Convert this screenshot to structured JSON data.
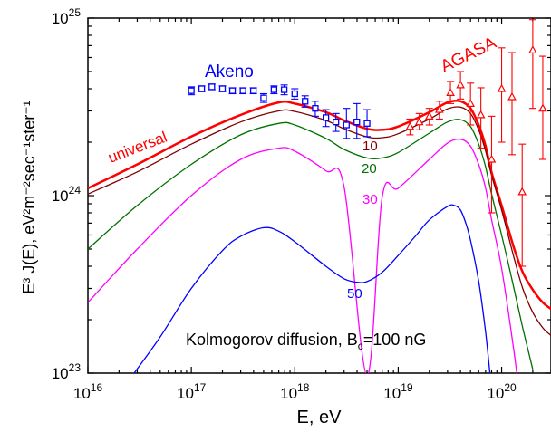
{
  "chart_data": {
    "type": "line",
    "title": "",
    "xlabel": "E, eV",
    "ylabel": "E³ J(E),  eV²m⁻²sec⁻¹ster⁻¹",
    "x_scale": "log",
    "y_scale": "log",
    "xlim": [
      1e+16,
      3e+20
    ],
    "ylim": [
      1e+23,
      1e+25
    ],
    "grid": false,
    "x_ticks": [
      {
        "value": 1e+16,
        "base": "10",
        "exp": "16"
      },
      {
        "value": 1e+17,
        "base": "10",
        "exp": "17"
      },
      {
        "value": 1e+18,
        "base": "10",
        "exp": "18"
      },
      {
        "value": 1e+19,
        "base": "10",
        "exp": "19"
      },
      {
        "value": 1e+20,
        "base": "10",
        "exp": "20"
      }
    ],
    "y_ticks": [
      {
        "value": 1e+23,
        "base": "10",
        "exp": "23"
      },
      {
        "value": 1e+24,
        "base": "10",
        "exp": "24"
      },
      {
        "value": 1e+25,
        "base": "10",
        "exp": "25"
      }
    ],
    "annotation": {
      "prefix": "Kolmogorov diffusion, B",
      "sub": "c",
      "suffix": "=100 nG"
    },
    "series": [
      {
        "name": "universal",
        "color": "#ff0000",
        "width": 2.5,
        "x": [
          1e+16,
          3e+16,
          1e+17,
          3e+17,
          7e+17,
          1e+18,
          2e+18,
          3e+18,
          5e+18,
          7e+18,
          1e+19,
          2e+19,
          3e+19,
          4e+19,
          5e+19,
          6e+19,
          7e+19,
          8e+19,
          1e+20,
          1.3e+20,
          1.6e+20,
          2e+20,
          2.5e+20,
          3e+20
        ],
        "y": [
          1.1e+24,
          1.5e+24,
          2.15e+24,
          2.85e+24,
          3.35e+24,
          3.3e+24,
          2.95e+24,
          2.65e+24,
          2.38e+24,
          2.35e+24,
          2.45e+24,
          2.95e+24,
          3.35e+24,
          3.4e+24,
          3.1e+24,
          2.5e+24,
          1.9e+24,
          1.35e+24,
          8.8e+23,
          5.2e+23,
          3.7e+23,
          2.95e+23,
          2.5e+23,
          2.3e+23
        ]
      },
      {
        "name": "10",
        "color": "#800000",
        "width": 1.3,
        "x": [
          1e+16,
          3e+16,
          1e+17,
          3e+17,
          7e+17,
          1e+18,
          2e+18,
          3e+18,
          5e+18,
          7e+18,
          1e+19,
          2e+19,
          3e+19,
          4e+19,
          5e+19,
          6e+19,
          7e+19,
          8e+19,
          1e+20,
          1.3e+20,
          1.6e+20,
          2e+20,
          2.5e+20,
          3e+20
        ],
        "y": [
          1.02e+24,
          1.36e+24,
          1.95e+24,
          2.6e+24,
          3e+24,
          2.98e+24,
          2.65e+24,
          2.38e+24,
          2.14e+24,
          2.12e+24,
          2.23e+24,
          2.7e+24,
          3.08e+24,
          3.15e+24,
          2.9e+24,
          2.35e+24,
          1.78e+24,
          1.3e+24,
          8.3e+23,
          4.6e+23,
          3e+23,
          2.2e+23,
          1.8e+23,
          1.63e+23
        ]
      },
      {
        "name": "20",
        "color": "#007000",
        "width": 1.3,
        "x": [
          1e+16,
          3e+16,
          1e+17,
          3e+17,
          7e+17,
          1e+18,
          2e+18,
          3e+18,
          5e+18,
          7e+18,
          1e+19,
          2e+19,
          3e+19,
          4e+19,
          5e+19,
          6e+19,
          7e+19,
          8e+19,
          1e+20,
          1.3e+20,
          1.6e+20,
          2e+20
        ],
        "y": [
          5e+23,
          8.8e+23,
          1.5e+24,
          2.2e+24,
          2.55e+24,
          2.5e+24,
          2.1e+24,
          1.82e+24,
          1.63e+24,
          1.63e+24,
          1.75e+24,
          2.25e+24,
          2.6e+24,
          2.68e+24,
          2.45e+24,
          1.95e+24,
          1.45e+24,
          1.02e+24,
          6e+23,
          3.1e+23,
          1.8e+23,
          1.05e+23
        ]
      },
      {
        "name": "30",
        "color": "#ff00ff",
        "width": 1.3,
        "x": [
          1e+16,
          3e+16,
          1e+17,
          3e+17,
          7e+17,
          1e+18,
          2e+18,
          3e+18,
          5e+18,
          7e+18,
          1e+19,
          2e+19,
          3e+19,
          4e+19,
          5e+19,
          6e+19,
          7e+19,
          8e+19,
          1e+20,
          1.3e+20,
          1.4e+20
        ],
        "y": [
          2.5e+23,
          5e+23,
          1e+24,
          1.6e+24,
          1.85e+24,
          1.78e+24,
          1.38e+24,
          1.12e+24,
          9.7e+22,
          9.8e+23,
          1.1e+24,
          1.6e+24,
          1.98e+24,
          2.08e+24,
          1.9e+24,
          1.5e+24,
          1.1e+24,
          7.3e+23,
          3.9e+23,
          1.4e+23,
          1e+23
        ]
      },
      {
        "name": "50",
        "color": "#0000ff",
        "width": 1.3,
        "x": [
          2.8e+16,
          5e+16,
          1e+17,
          2e+17,
          3e+17,
          5e+17,
          7e+17,
          1e+18,
          2e+18,
          3e+18,
          4e+18,
          5e+18,
          7e+18,
          1e+19,
          1.5e+19,
          2e+19,
          3e+19,
          3.5e+19,
          4e+19,
          4.5e+19,
          5e+19,
          6e+19,
          7e+19,
          7.7e+19
        ],
        "y": [
          1e+23,
          1.6e+23,
          3e+23,
          4.9e+23,
          5.9e+23,
          6.6e+23,
          6.3e+23,
          5.5e+23,
          4e+23,
          3.4e+23,
          3.25e+23,
          3.28e+23,
          3.7e+23,
          4.6e+23,
          6e+23,
          7.3e+23,
          8.7e+23,
          8.8e+23,
          8.3e+23,
          7e+23,
          5.6e+23,
          3.3e+23,
          1.7e+23,
          1e+23
        ]
      }
    ],
    "data_sets": [
      {
        "name": "Akeno",
        "color": "#0000ff",
        "marker": "square",
        "points": [
          [
            1e+17,
            3.9e+24,
            2e+23,
            2e+23
          ],
          [
            1.26e+17,
            4e+24,
            1.5e+23,
            1.5e+23
          ],
          [
            1.58e+17,
            4.1e+24,
            1.5e+23,
            1.5e+23
          ],
          [
            2e+17,
            4e+24,
            1.5e+23,
            1.5e+23
          ],
          [
            2.5e+17,
            3.9e+24,
            1.5e+23,
            1.5e+23
          ],
          [
            3.16e+17,
            3.9e+24,
            1.5e+23,
            1.5e+23
          ],
          [
            3.98e+17,
            3.9e+24,
            1.5e+23,
            1.5e+23
          ],
          [
            5e+17,
            3.55e+24,
            2e+23,
            2e+23
          ],
          [
            6.3e+17,
            3.95e+24,
            2e+23,
            2e+23
          ],
          [
            7.9e+17,
            3.95e+24,
            2.5e+23,
            2.5e+23
          ],
          [
            1e+18,
            3.75e+24,
            2.5e+23,
            2.5e+23
          ],
          [
            1.26e+18,
            3.4e+24,
            2.5e+23,
            2.5e+23
          ],
          [
            1.58e+18,
            3.1e+24,
            3e+23,
            3e+23
          ],
          [
            2e+18,
            2.75e+24,
            3e+23,
            3e+23
          ],
          [
            2.5e+18,
            2.6e+24,
            3e+23,
            3e+23
          ],
          [
            3.16e+18,
            2.5e+24,
            4e+23,
            6e+23
          ],
          [
            3.98e+18,
            2.6e+24,
            5e+23,
            7e+23
          ],
          [
            5e+18,
            2.55e+24,
            4e+23,
            5e+23
          ]
        ]
      },
      {
        "name": "AGASA",
        "color": "#ff0000",
        "marker": "triangle",
        "points": [
          [
            1.3e+19,
            2.45e+24,
            2.5e+23,
            2.5e+23
          ],
          [
            1.6e+19,
            2.6e+24,
            2.5e+23,
            3e+23
          ],
          [
            2e+19,
            2.8e+24,
            3e+23,
            3e+23
          ],
          [
            2.5e+19,
            3.05e+24,
            3.5e+23,
            3.5e+23
          ],
          [
            3.2e+19,
            3.8e+24,
            5e+23,
            6e+23
          ],
          [
            4e+19,
            4.2e+24,
            7e+23,
            8e+23
          ],
          [
            5e+19,
            3.3e+24,
            8e+23,
            1e+24
          ],
          [
            6.3e+19,
            2.85e+24,
            1e+24,
            1.2e+24
          ],
          [
            8e+19,
            1.6e+24,
            8e+23,
            1.2e+24
          ],
          [
            1e+20,
            4e+24,
            2e+24,
            2.8e+24
          ],
          [
            1.26e+20,
            3.6e+24,
            1.9e+24,
            2.8e+24
          ],
          [
            1.58e+20,
            1.05e+24,
            6.5e+23,
            9e+23
          ],
          [
            2e+20,
            6.6e+24,
            3.5e+24,
            3.2e+24
          ],
          [
            2.5e+20,
            3.1e+24,
            1.5e+24,
            3e+24
          ]
        ]
      }
    ],
    "labels": {
      "universal": "universal",
      "agasa": "AGASA",
      "akeno": "Akeno",
      "c10": "10",
      "c20": "20",
      "c30": "30",
      "c50": "50"
    }
  }
}
